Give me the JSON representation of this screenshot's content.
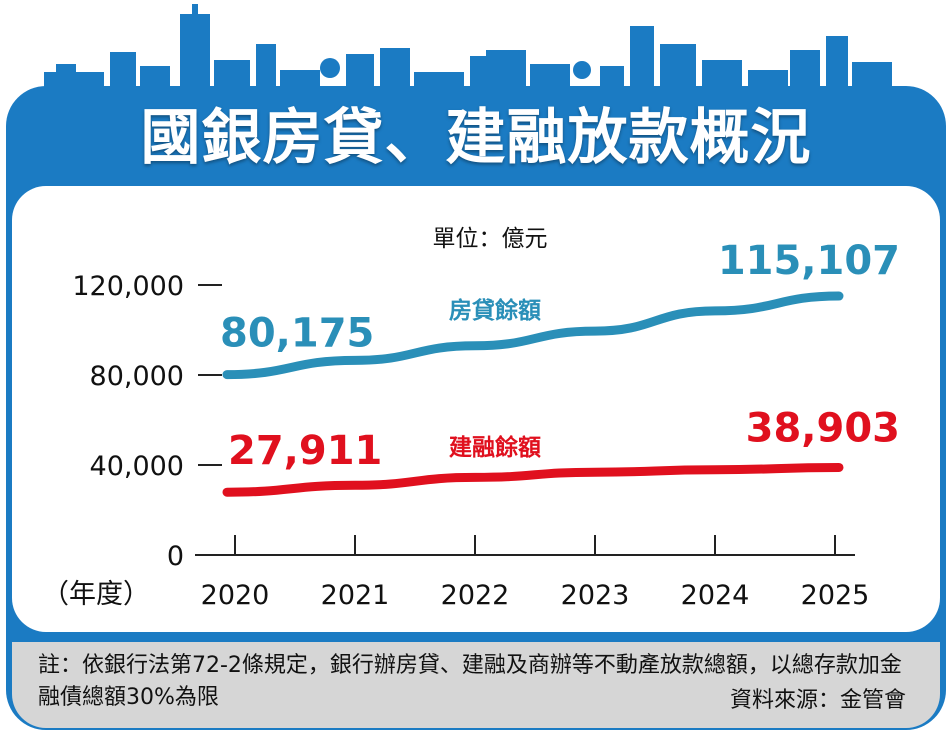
{
  "title": "國銀房貸、建融放款概況",
  "colors": {
    "brand_blue": "#1b7bc3",
    "mortgage_line": "#2a8fb8",
    "construction_line": "#e0101e",
    "note_bg": "#d6d6d6"
  },
  "chart_data": {
    "type": "line",
    "unit_label": "單位：億元",
    "x_axis_prefix": "（年度）",
    "categories": [
      "2020",
      "2021",
      "2022",
      "2023",
      "2024",
      "2025"
    ],
    "yticks": [
      "0",
      "40,000",
      "80,000",
      "120,000"
    ],
    "ylim": [
      0,
      120000
    ],
    "series": [
      {
        "name": "房貸餘額",
        "values": [
          80175,
          86500,
          93000,
          99500,
          108500,
          115107
        ],
        "start_label": "80,175",
        "end_label": "115,107"
      },
      {
        "name": "建融餘額",
        "values": [
          27911,
          31000,
          34500,
          36800,
          37900,
          38903
        ],
        "start_label": "27,911",
        "end_label": "38,903"
      }
    ]
  },
  "footer": {
    "note": "註：依銀行法第72-2條規定，銀行辦房貸、建融及商辦等不動產放款總額，以總存款加金融債總額30%為限",
    "source": "資料來源：金管會"
  }
}
